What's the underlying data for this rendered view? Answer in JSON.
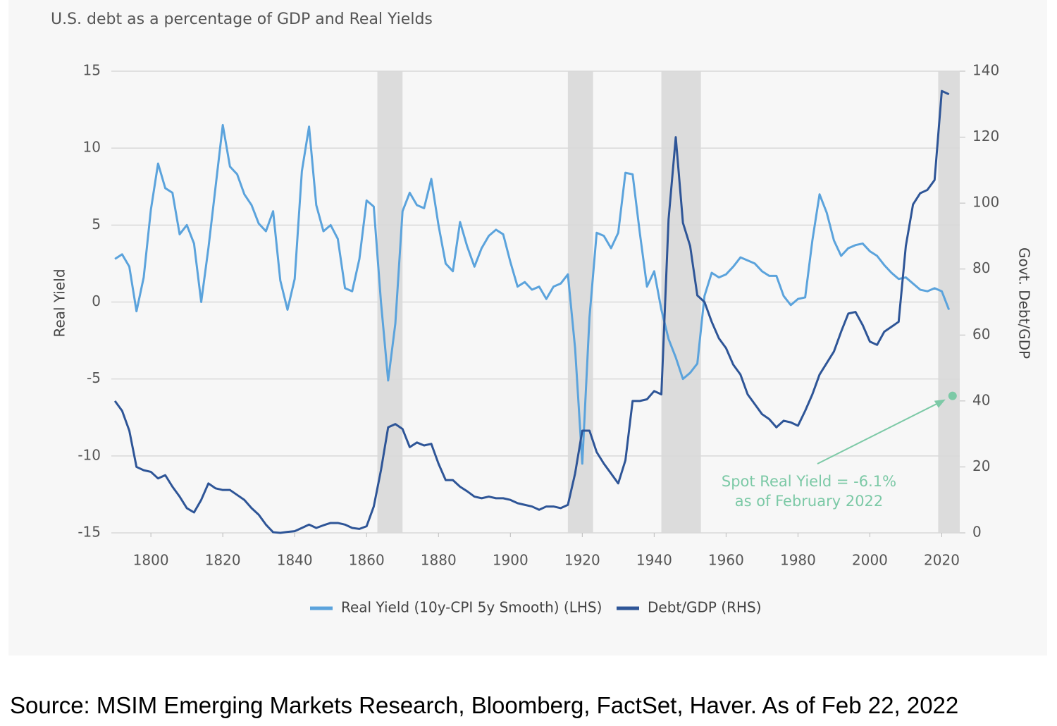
{
  "chart_data": {
    "type": "line",
    "title": "U.S. debt as a percentage of GDP and Real Yields",
    "y_label": "Real Yield",
    "y2_label": "Govt. Debt/GDP",
    "x": [
      1790,
      1792,
      1794,
      1796,
      1798,
      1800,
      1802,
      1804,
      1806,
      1808,
      1810,
      1812,
      1814,
      1816,
      1818,
      1820,
      1822,
      1824,
      1826,
      1828,
      1830,
      1832,
      1834,
      1836,
      1838,
      1840,
      1842,
      1844,
      1846,
      1848,
      1850,
      1852,
      1854,
      1856,
      1858,
      1860,
      1862,
      1864,
      1866,
      1868,
      1870,
      1872,
      1874,
      1876,
      1878,
      1880,
      1882,
      1884,
      1886,
      1888,
      1890,
      1892,
      1894,
      1896,
      1898,
      1900,
      1902,
      1904,
      1906,
      1908,
      1910,
      1912,
      1914,
      1916,
      1918,
      1920,
      1922,
      1924,
      1926,
      1928,
      1930,
      1932,
      1934,
      1936,
      1938,
      1940,
      1942,
      1944,
      1946,
      1948,
      1950,
      1952,
      1954,
      1956,
      1958,
      1960,
      1962,
      1964,
      1966,
      1968,
      1970,
      1972,
      1974,
      1976,
      1978,
      1980,
      1982,
      1984,
      1986,
      1988,
      1990,
      1992,
      1994,
      1996,
      1998,
      2000,
      2002,
      2004,
      2006,
      2008,
      2010,
      2012,
      2014,
      2016,
      2018,
      2020,
      2022
    ],
    "series": [
      {
        "name": "Real Yield (10y-CPI 5y Smooth) (LHS)",
        "color": "#5ba3dc",
        "axis": "y",
        "values": [
          2.8,
          3.1,
          2.3,
          -0.6,
          1.6,
          6.0,
          9.0,
          7.4,
          7.1,
          4.4,
          5.0,
          3.8,
          0.0,
          3.5,
          7.5,
          11.5,
          8.8,
          8.3,
          7.0,
          6.3,
          5.1,
          4.6,
          5.9,
          1.4,
          -0.5,
          1.5,
          8.5,
          11.4,
          6.3,
          4.6,
          5.0,
          4.1,
          0.9,
          0.7,
          2.8,
          6.6,
          6.2,
          0.0,
          -5.1,
          -1.4,
          5.9,
          7.1,
          6.3,
          6.1,
          8.0,
          5.0,
          2.5,
          2.0,
          5.2,
          3.6,
          2.3,
          3.5,
          4.3,
          4.7,
          4.4,
          2.6,
          1.0,
          1.3,
          0.8,
          1.0,
          0.2,
          1.0,
          1.2,
          1.8,
          -3.0,
          -10.5,
          -1.0,
          4.5,
          4.3,
          3.5,
          4.5,
          8.4,
          8.3,
          4.5,
          1.0,
          2.0,
          -0.5,
          -2.4,
          -3.6,
          -5.0,
          -4.6,
          -4.0,
          0.4,
          1.9,
          1.6,
          1.8,
          2.3,
          2.9,
          2.7,
          2.5,
          2.0,
          1.7,
          1.7,
          0.4,
          -0.2,
          0.2,
          0.3,
          4.0,
          7.0,
          5.8,
          4.0,
          3.0,
          3.5,
          3.7,
          3.8,
          3.3,
          3.0,
          2.4,
          1.9,
          1.5,
          1.6,
          1.2,
          0.8,
          0.7,
          0.9,
          0.7,
          -0.5
        ]
      },
      {
        "name": "Debt/GDP (RHS)",
        "color": "#2e5597",
        "axis": "y2",
        "values": [
          40,
          37,
          31,
          20,
          19,
          18.5,
          16.5,
          17.5,
          14,
          11,
          7.5,
          6.2,
          10,
          15,
          13.5,
          13,
          13,
          11.5,
          10,
          7.5,
          5.5,
          2.5,
          0.2,
          0,
          0.3,
          0.5,
          1.5,
          2.5,
          1.5,
          2.3,
          3,
          3,
          2.5,
          1.5,
          1.2,
          2,
          8,
          19,
          32,
          33,
          31.5,
          26,
          27.4,
          26.5,
          27,
          21,
          16,
          16,
          14,
          12.6,
          11,
          10.5,
          11,
          10.5,
          10.5,
          10,
          9,
          8.5,
          8,
          7,
          8,
          8,
          7.5,
          8.5,
          18,
          31,
          31,
          24.5,
          21,
          18,
          15,
          22,
          40,
          40,
          40.5,
          43,
          42,
          95,
          120,
          94,
          87,
          72,
          70,
          64,
          59,
          56,
          51,
          48,
          42,
          39,
          36,
          34.5,
          32,
          34,
          33.5,
          32.5,
          37,
          42,
          48,
          51.5,
          55,
          61,
          66.5,
          67,
          63,
          58,
          57,
          61,
          62.5,
          64,
          87,
          99.6,
          103,
          104,
          107,
          134,
          133
        ]
      }
    ],
    "xlim": [
      1789,
      2025
    ],
    "xticks": [
      1800,
      1820,
      1840,
      1860,
      1880,
      1900,
      1920,
      1940,
      1960,
      1980,
      2000,
      2020
    ],
    "ylim": [
      -15,
      15
    ],
    "yticks": [
      -15,
      -10,
      -5,
      0,
      5,
      10,
      15
    ],
    "y2lim": [
      0,
      140
    ],
    "y2ticks": [
      0,
      20,
      40,
      60,
      80,
      100,
      120,
      140
    ],
    "grid": true,
    "legend": "bottom",
    "shaded_periods": [
      [
        1863,
        1870
      ],
      [
        1916,
        1923
      ],
      [
        1942,
        1953
      ],
      [
        2019,
        2025
      ]
    ],
    "shade_color": "#dcdcdc",
    "annotation": {
      "text": [
        "Spot Real Yield = -6.1%",
        "as of February 2022"
      ],
      "x": 2023,
      "y": -6.1,
      "color": "#7cc9a6"
    }
  },
  "source": "Source: MSIM Emerging Markets Research, Bloomberg, FactSet, Haver. As of Feb 22, 2022"
}
